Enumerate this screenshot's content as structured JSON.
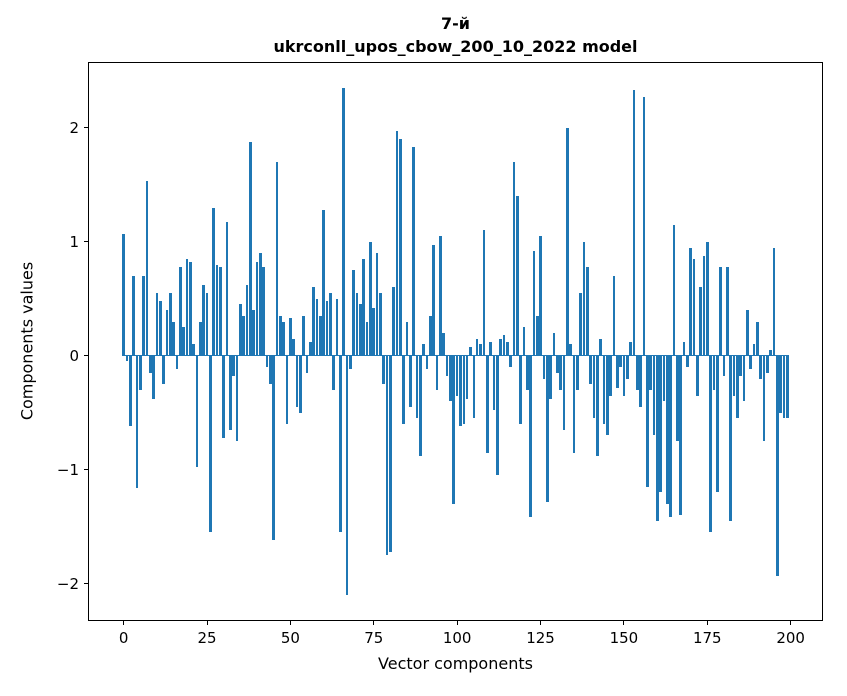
{
  "figure": {
    "title_line1": "7-й",
    "title_line2": "ukrconll_upos_cbow_200_10_2022 model"
  },
  "chart_data": {
    "type": "bar",
    "title": "7-й\nukrconll_upos_cbow_200_10_2022 model",
    "xlabel": "Vector components",
    "ylabel": "Components values",
    "bar_color": "#1f77b4",
    "bar_width": 0.8,
    "xlim": [
      -10.4,
      209.4
    ],
    "ylim": [
      -2.32,
      2.57
    ],
    "xticks": [
      0,
      25,
      50,
      75,
      100,
      125,
      150,
      175,
      200
    ],
    "yticks": [
      -2,
      -1,
      0,
      1,
      2
    ],
    "grid": false,
    "legend": "none",
    "values": [
      1.07,
      -0.05,
      -0.62,
      0.7,
      -1.16,
      -0.3,
      0.7,
      1.53,
      -0.15,
      -0.38,
      0.55,
      0.48,
      -0.25,
      0.4,
      0.55,
      0.3,
      -0.12,
      0.78,
      0.25,
      0.85,
      0.82,
      0.1,
      -0.98,
      0.3,
      0.62,
      0.55,
      -1.55,
      1.3,
      0.8,
      0.78,
      -0.72,
      1.17,
      -0.65,
      -0.18,
      -0.75,
      0.45,
      0.35,
      0.62,
      1.88,
      0.4,
      0.82,
      0.9,
      0.78,
      -0.1,
      -0.25,
      -1.62,
      1.7,
      0.35,
      0.3,
      -0.6,
      0.33,
      0.15,
      -0.45,
      -0.5,
      0.35,
      -0.15,
      0.12,
      0.6,
      0.5,
      0.35,
      1.28,
      0.48,
      0.55,
      -0.3,
      0.5,
      -1.55,
      2.35,
      -2.1,
      -0.12,
      0.75,
      0.55,
      0.45,
      0.85,
      0.3,
      1.0,
      0.42,
      0.9,
      0.55,
      -0.25,
      -1.75,
      -1.72,
      0.6,
      1.97,
      1.9,
      -0.6,
      0.3,
      -0.45,
      1.83,
      -0.55,
      -0.88,
      0.1,
      -0.12,
      0.35,
      0.97,
      -0.3,
      1.05,
      0.2,
      -0.18,
      -0.4,
      -1.3,
      -0.35,
      -0.62,
      -0.6,
      -0.38,
      0.08,
      -0.55,
      0.15,
      0.1,
      1.1,
      -0.85,
      0.12,
      -0.48,
      -1.05,
      0.15,
      0.18,
      0.12,
      -0.1,
      1.7,
      1.4,
      -0.6,
      0.25,
      -0.3,
      -1.42,
      0.92,
      0.35,
      1.05,
      -0.2,
      -1.28,
      -0.38,
      0.2,
      -0.15,
      -0.3,
      -0.65,
      2.0,
      0.1,
      -0.85,
      -0.3,
      0.55,
      1.0,
      0.78,
      -0.25,
      -0.55,
      -0.88,
      0.15,
      -0.6,
      -0.7,
      -0.35,
      0.7,
      -0.28,
      -0.1,
      -0.35,
      -0.2,
      0.12,
      2.33,
      -0.3,
      -0.45,
      2.27,
      -1.15,
      -0.3,
      -0.7,
      -1.45,
      -1.2,
      -0.4,
      -1.3,
      -1.42,
      1.15,
      -0.75,
      -1.4,
      0.12,
      -0.1,
      0.95,
      0.85,
      -0.35,
      0.6,
      0.88,
      1.0,
      -1.55,
      -0.3,
      -1.2,
      0.78,
      -0.18,
      0.78,
      -1.45,
      -0.35,
      -0.55,
      -0.18,
      -0.4,
      0.4,
      -0.12,
      0.1,
      0.3,
      -0.2,
      -0.75,
      -0.15,
      0.05,
      0.95,
      -1.93,
      -0.5,
      -0.55,
      -0.55
    ]
  }
}
